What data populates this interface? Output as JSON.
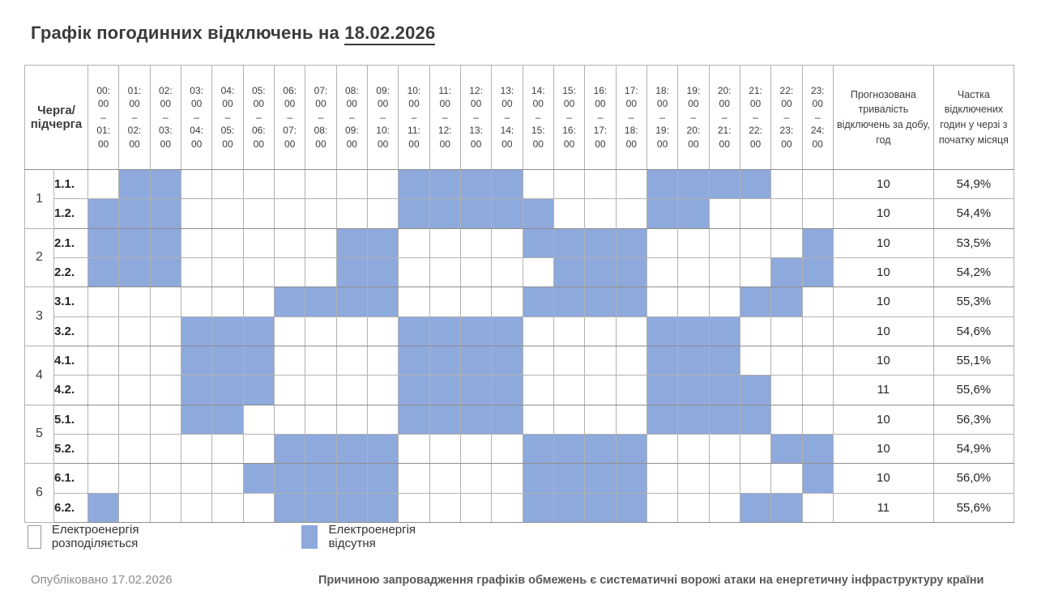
{
  "title": {
    "prefix": "Графік погодинних відключень на",
    "date": "18.02.2026"
  },
  "chart_data": {
    "type": "heatmap",
    "title": "Графік погодинних відключень на 18.02.2026",
    "row_header": {
      "lines": [
        "Черга/",
        "підчерга"
      ]
    },
    "range_separator": "–",
    "hour_columns": [
      {
        "start": "00:00",
        "end": "01:00"
      },
      {
        "start": "01:00",
        "end": "02:00"
      },
      {
        "start": "02:00",
        "end": "03:00"
      },
      {
        "start": "03:00",
        "end": "04:00"
      },
      {
        "start": "04:00",
        "end": "05:00"
      },
      {
        "start": "05:00",
        "end": "06:00"
      },
      {
        "start": "06:00",
        "end": "07:00"
      },
      {
        "start": "07:00",
        "end": "08:00"
      },
      {
        "start": "08:00",
        "end": "09:00"
      },
      {
        "start": "09:00",
        "end": "10:00"
      },
      {
        "start": "10:00",
        "end": "11:00"
      },
      {
        "start": "11:00",
        "end": "12:00"
      },
      {
        "start": "12:00",
        "end": "13:00"
      },
      {
        "start": "13:00",
        "end": "14:00"
      },
      {
        "start": "14:00",
        "end": "15:00"
      },
      {
        "start": "15:00",
        "end": "16:00"
      },
      {
        "start": "16:00",
        "end": "17:00"
      },
      {
        "start": "17:00",
        "end": "18:00"
      },
      {
        "start": "18:00",
        "end": "19:00"
      },
      {
        "start": "19:00",
        "end": "20:00"
      },
      {
        "start": "20:00",
        "end": "21:00"
      },
      {
        "start": "21:00",
        "end": "22:00"
      },
      {
        "start": "22:00",
        "end": "23:00"
      },
      {
        "start": "23:00",
        "end": "24:00"
      }
    ],
    "duration_header": "Прогнозована тривалість відключень за добу, год",
    "share_header": "Частка відключених годин у черзі з початку місяця",
    "cell_states": {
      "available": "Електроенергія розподіляється",
      "outage": "Електроенергія відсутня"
    },
    "colors": {
      "outage": "#8ea9dc",
      "available": "#ffffff"
    },
    "queues": [
      {
        "number": "1",
        "subqueues": [
          {
            "label": "1.1.",
            "outage_hours": [
              1,
              2,
              10,
              11,
              12,
              13,
              18,
              19,
              20,
              21
            ],
            "duration": "10",
            "share": "54,9%"
          },
          {
            "label": "1.2.",
            "outage_hours": [
              0,
              1,
              2,
              10,
              11,
              12,
              13,
              14,
              18,
              19
            ],
            "duration": "10",
            "share": "54,4%"
          }
        ]
      },
      {
        "number": "2",
        "subqueues": [
          {
            "label": "2.1.",
            "outage_hours": [
              0,
              1,
              2,
              8,
              9,
              14,
              15,
              16,
              17,
              23
            ],
            "duration": "10",
            "share": "53,5%"
          },
          {
            "label": "2.2.",
            "outage_hours": [
              0,
              1,
              2,
              8,
              9,
              15,
              16,
              17,
              22,
              23
            ],
            "duration": "10",
            "share": "54,2%"
          }
        ]
      },
      {
        "number": "3",
        "subqueues": [
          {
            "label": "3.1.",
            "outage_hours": [
              6,
              7,
              8,
              9,
              14,
              15,
              16,
              17,
              21,
              22
            ],
            "duration": "10",
            "share": "55,3%"
          },
          {
            "label": "3.2.",
            "outage_hours": [
              3,
              4,
              5,
              10,
              11,
              12,
              13,
              18,
              19,
              20
            ],
            "duration": "10",
            "share": "54,6%"
          }
        ]
      },
      {
        "number": "4",
        "subqueues": [
          {
            "label": "4.1.",
            "outage_hours": [
              3,
              4,
              5,
              10,
              11,
              12,
              13,
              18,
              19,
              20
            ],
            "duration": "10",
            "share": "55,1%"
          },
          {
            "label": "4.2.",
            "outage_hours": [
              3,
              4,
              5,
              10,
              11,
              12,
              13,
              18,
              19,
              20,
              21
            ],
            "duration": "11",
            "share": "55,6%"
          }
        ]
      },
      {
        "number": "5",
        "subqueues": [
          {
            "label": "5.1.",
            "outage_hours": [
              3,
              4,
              10,
              11,
              12,
              13,
              18,
              19,
              20,
              21
            ],
            "duration": "10",
            "share": "56,3%"
          },
          {
            "label": "5.2.",
            "outage_hours": [
              6,
              7,
              8,
              9,
              14,
              15,
              16,
              17,
              22,
              23
            ],
            "duration": "10",
            "share": "54,9%"
          }
        ]
      },
      {
        "number": "6",
        "subqueues": [
          {
            "label": "6.1.",
            "outage_hours": [
              5,
              6,
              7,
              8,
              9,
              14,
              15,
              16,
              17,
              23
            ],
            "duration": "10",
            "share": "56,0%"
          },
          {
            "label": "6.2.",
            "outage_hours": [
              0,
              6,
              7,
              8,
              9,
              14,
              15,
              16,
              17,
              21,
              22
            ],
            "duration": "11",
            "share": "55,6%"
          }
        ]
      }
    ]
  },
  "legend": {
    "items": [
      {
        "state": "available",
        "label": "Електроенергія розподіляється"
      },
      {
        "state": "outage",
        "label": "Електроенергія відсутня"
      }
    ]
  },
  "footer": {
    "published": "Опубліковано 17.02.2026",
    "note": "Причиною запровадження графіків обмежень є систематичні ворожі атаки на енергетичну інфраструктуру країни"
  }
}
